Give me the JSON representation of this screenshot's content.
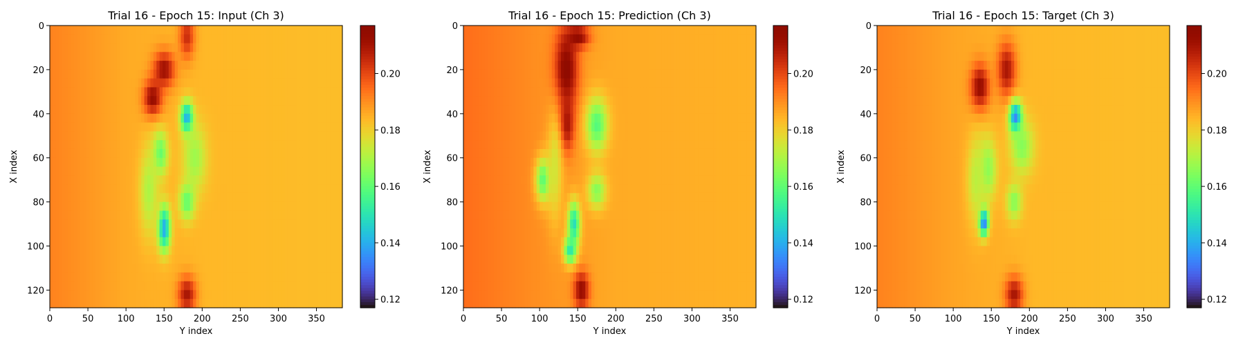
{
  "chart_data": [
    {
      "type": "heatmap",
      "title": "Trial 16 - Epoch 15: Input (Ch 3)",
      "xlabel": "Y index",
      "ylabel": "X index",
      "xlim": [
        0,
        384
      ],
      "ylim": [
        128,
        0
      ],
      "xticks": [
        0,
        50,
        100,
        150,
        200,
        250,
        300,
        350
      ],
      "yticks": [
        0,
        20,
        40,
        60,
        80,
        100,
        120
      ],
      "colorbar": {
        "min": 0.117,
        "max": 0.217,
        "ticks": [
          0.12,
          0.14,
          0.16,
          0.18,
          0.2
        ],
        "tick_labels": [
          "0.12",
          "0.14",
          "0.16",
          "0.18",
          "0.20"
        ],
        "colormap": "turbo"
      },
      "field": {
        "background_gradient": [
          [
            0,
            0.192
          ],
          [
            100,
            0.186
          ],
          [
            200,
            0.184
          ],
          [
            384,
            0.183
          ]
        ],
        "blobs": [
          {
            "x": 150,
            "y": 20,
            "rx": 14,
            "ry": 8,
            "value": 0.212
          },
          {
            "x": 135,
            "y": 33,
            "rx": 12,
            "ry": 8,
            "value": 0.214
          },
          {
            "x": 180,
            "y": 5,
            "rx": 10,
            "ry": 10,
            "value": 0.205
          },
          {
            "x": 180,
            "y": 122,
            "rx": 12,
            "ry": 8,
            "value": 0.21
          },
          {
            "x": 180,
            "y": 42,
            "rx": 8,
            "ry": 7,
            "value": 0.135
          },
          {
            "x": 190,
            "y": 60,
            "rx": 15,
            "ry": 15,
            "value": 0.168
          },
          {
            "x": 145,
            "y": 58,
            "rx": 10,
            "ry": 10,
            "value": 0.16
          },
          {
            "x": 150,
            "y": 92,
            "rx": 8,
            "ry": 10,
            "value": 0.138
          },
          {
            "x": 180,
            "y": 80,
            "rx": 10,
            "ry": 8,
            "value": 0.16
          },
          {
            "x": 130,
            "y": 75,
            "rx": 12,
            "ry": 20,
            "value": 0.17
          }
        ]
      }
    },
    {
      "type": "heatmap",
      "title": "Trial 16 - Epoch 15: Prediction (Ch 3)",
      "xlabel": "Y index",
      "ylabel": "X index",
      "xlim": [
        0,
        384
      ],
      "ylim": [
        128,
        0
      ],
      "xticks": [
        0,
        50,
        100,
        150,
        200,
        250,
        300,
        350
      ],
      "yticks": [
        0,
        20,
        40,
        60,
        80,
        100,
        120
      ],
      "colorbar": {
        "min": 0.117,
        "max": 0.217,
        "ticks": [
          0.12,
          0.14,
          0.16,
          0.18,
          0.2
        ],
        "tick_labels": [
          "0.12",
          "0.14",
          "0.16",
          "0.18",
          "0.20"
        ],
        "colormap": "turbo"
      },
      "field": {
        "background_gradient": [
          [
            0,
            0.195
          ],
          [
            100,
            0.19
          ],
          [
            200,
            0.186
          ],
          [
            384,
            0.185
          ]
        ],
        "blobs": [
          {
            "x": 135,
            "y": 20,
            "rx": 15,
            "ry": 18,
            "value": 0.217
          },
          {
            "x": 150,
            "y": 5,
            "rx": 15,
            "ry": 5,
            "value": 0.215
          },
          {
            "x": 135,
            "y": 45,
            "rx": 10,
            "ry": 12,
            "value": 0.212
          },
          {
            "x": 155,
            "y": 120,
            "rx": 10,
            "ry": 8,
            "value": 0.214
          },
          {
            "x": 175,
            "y": 45,
            "rx": 14,
            "ry": 12,
            "value": 0.158
          },
          {
            "x": 175,
            "y": 75,
            "rx": 12,
            "ry": 8,
            "value": 0.165
          },
          {
            "x": 145,
            "y": 90,
            "rx": 8,
            "ry": 10,
            "value": 0.148
          },
          {
            "x": 105,
            "y": 70,
            "rx": 10,
            "ry": 10,
            "value": 0.158
          },
          {
            "x": 140,
            "y": 102,
            "rx": 8,
            "ry": 6,
            "value": 0.15
          },
          {
            "x": 120,
            "y": 65,
            "rx": 10,
            "ry": 25,
            "value": 0.175
          }
        ]
      }
    },
    {
      "type": "heatmap",
      "title": "Trial 16 - Epoch 15: Target (Ch 3)",
      "xlabel": "Y index",
      "ylabel": "X index",
      "xlim": [
        0,
        384
      ],
      "ylim": [
        128,
        0
      ],
      "xticks": [
        0,
        50,
        100,
        150,
        200,
        250,
        300,
        350
      ],
      "yticks": [
        0,
        20,
        40,
        60,
        80,
        100,
        120
      ],
      "colorbar": {
        "min": 0.117,
        "max": 0.217,
        "ticks": [
          0.12,
          0.14,
          0.16,
          0.18,
          0.2
        ],
        "tick_labels": [
          "0.12",
          "0.14",
          "0.16",
          "0.18",
          "0.20"
        ],
        "colormap": "turbo"
      },
      "field": {
        "background_gradient": [
          [
            0,
            0.192
          ],
          [
            100,
            0.187
          ],
          [
            200,
            0.184
          ],
          [
            384,
            0.183
          ]
        ],
        "blobs": [
          {
            "x": 135,
            "y": 28,
            "rx": 12,
            "ry": 10,
            "value": 0.214
          },
          {
            "x": 170,
            "y": 20,
            "rx": 12,
            "ry": 12,
            "value": 0.21
          },
          {
            "x": 180,
            "y": 122,
            "rx": 12,
            "ry": 8,
            "value": 0.21
          },
          {
            "x": 182,
            "y": 42,
            "rx": 8,
            "ry": 7,
            "value": 0.125
          },
          {
            "x": 190,
            "y": 55,
            "rx": 15,
            "ry": 12,
            "value": 0.165
          },
          {
            "x": 140,
            "y": 89,
            "rx": 6,
            "ry": 6,
            "value": 0.12
          },
          {
            "x": 145,
            "y": 65,
            "rx": 12,
            "ry": 14,
            "value": 0.165
          },
          {
            "x": 180,
            "y": 80,
            "rx": 10,
            "ry": 8,
            "value": 0.165
          },
          {
            "x": 130,
            "y": 70,
            "rx": 12,
            "ry": 20,
            "value": 0.172
          }
        ]
      }
    }
  ]
}
